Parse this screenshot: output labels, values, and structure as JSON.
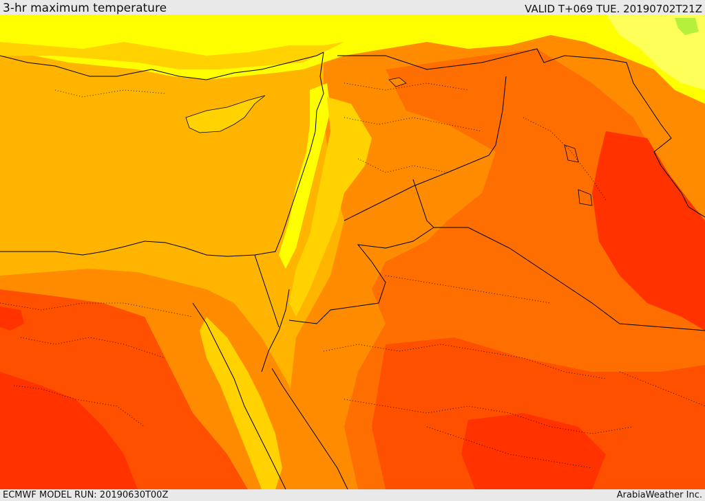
{
  "header": {
    "title": "3-hr maximum temperature",
    "valid_time": "VALID T+069 TUE. 20190702T21Z"
  },
  "footer": {
    "model_run": "ECMWF MODEL RUN: 20190630T00Z",
    "credit": "ArabiaWeather Inc."
  },
  "map": {
    "colors": {
      "green": "#b4f03c",
      "light_yellow": "#ffff5a",
      "yellow": "#ffff00",
      "amber": "#ffd200",
      "light_orange": "#ffb400",
      "orange": "#ff8c00",
      "dark_orange": "#ff6e00",
      "red_orange": "#ff5000",
      "red": "#ff3200",
      "border": "#000000"
    }
  }
}
